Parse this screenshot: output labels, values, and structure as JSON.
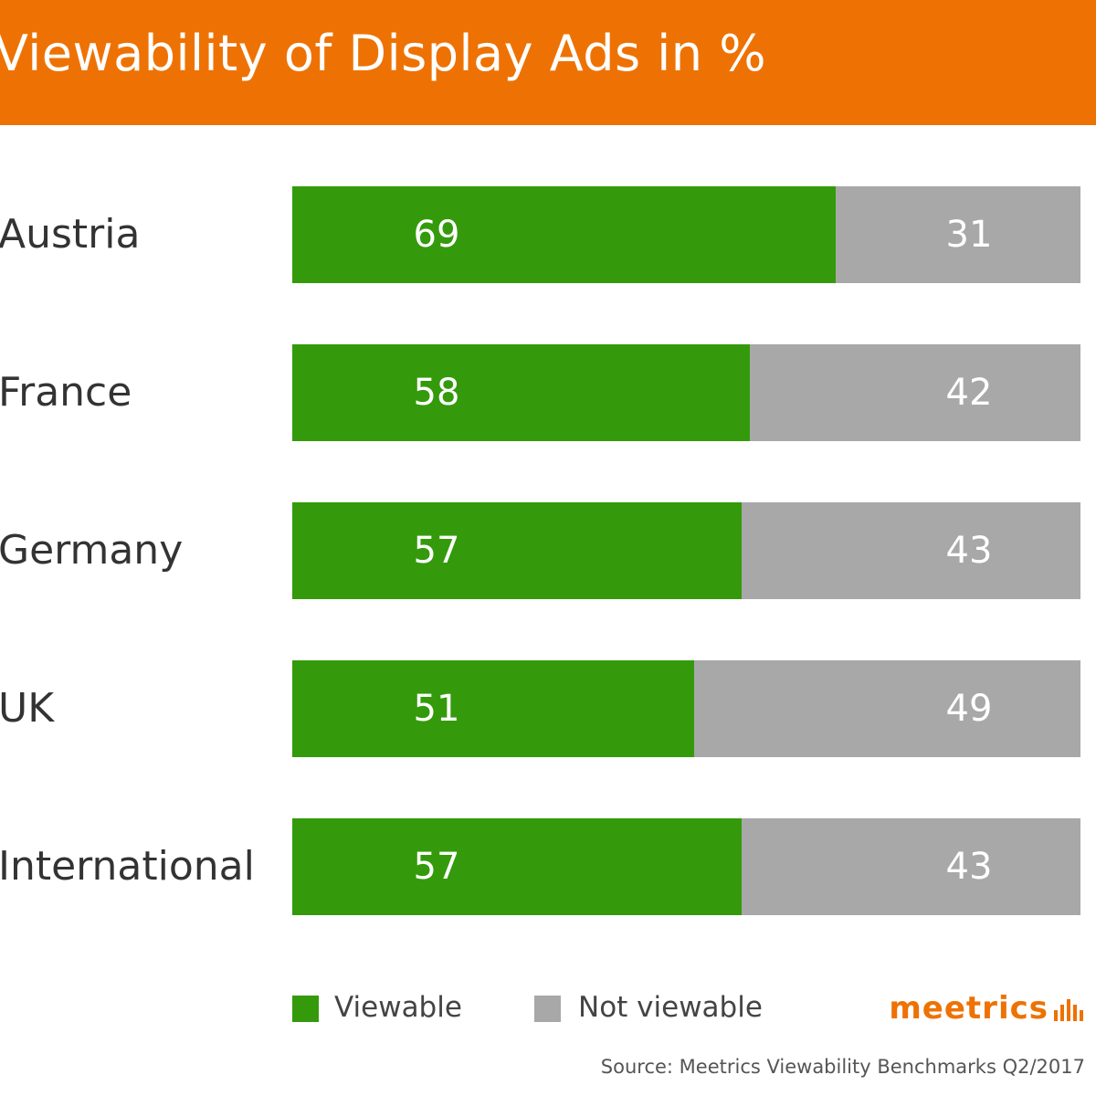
{
  "chart_data": {
    "type": "bar",
    "orientation": "horizontal",
    "stacked": true,
    "title": "Viewability of Display Ads in %",
    "categories": [
      "Austria",
      "France",
      "Germany",
      "UK",
      "International"
    ],
    "series": [
      {
        "name": "Viewable",
        "values": [
          69,
          58,
          57,
          51,
          57
        ],
        "color": "#349a0c"
      },
      {
        "name": "Not viewable",
        "values": [
          31,
          42,
          43,
          49,
          43
        ],
        "color": "#a8a8a8"
      }
    ],
    "xlim": [
      0,
      100
    ],
    "grid": false,
    "legend": "bottom-left"
  },
  "brand": {
    "name": "meetrics",
    "icon": "bars-icon"
  },
  "source": "Source: Meetrics Viewability Benchmarks Q2/2017",
  "colors": {
    "header": "#ee7203",
    "brand": "#ee7203"
  }
}
